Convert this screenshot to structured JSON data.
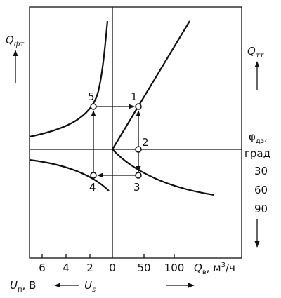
{
  "left_axis": {
    "symbol": "Q",
    "subscript": "фт"
  },
  "right_axis": {
    "symbol": "Q",
    "subscript": "тт"
  },
  "angle_axis": {
    "symbol": "φ",
    "subscript": "дз",
    "suffix": ",",
    "unit": "град",
    "ticks": [
      "30",
      "60",
      "90"
    ]
  },
  "bottom_left_ticks": [
    "6",
    "4",
    "2",
    "0"
  ],
  "bottom_right_ticks": [
    "50",
    "100"
  ],
  "flow_label": {
    "symbol": "Q",
    "subscript": "в",
    "unit": ", м",
    "power": "3",
    "unit_end": "/ч"
  },
  "voltage_label": {
    "symbol": "U",
    "subscript": "п",
    "unit": ", В"
  },
  "signal_label": {
    "symbol": "U",
    "subscript": "s"
  },
  "points": [
    "1",
    "2",
    "3",
    "4",
    "5"
  ]
}
